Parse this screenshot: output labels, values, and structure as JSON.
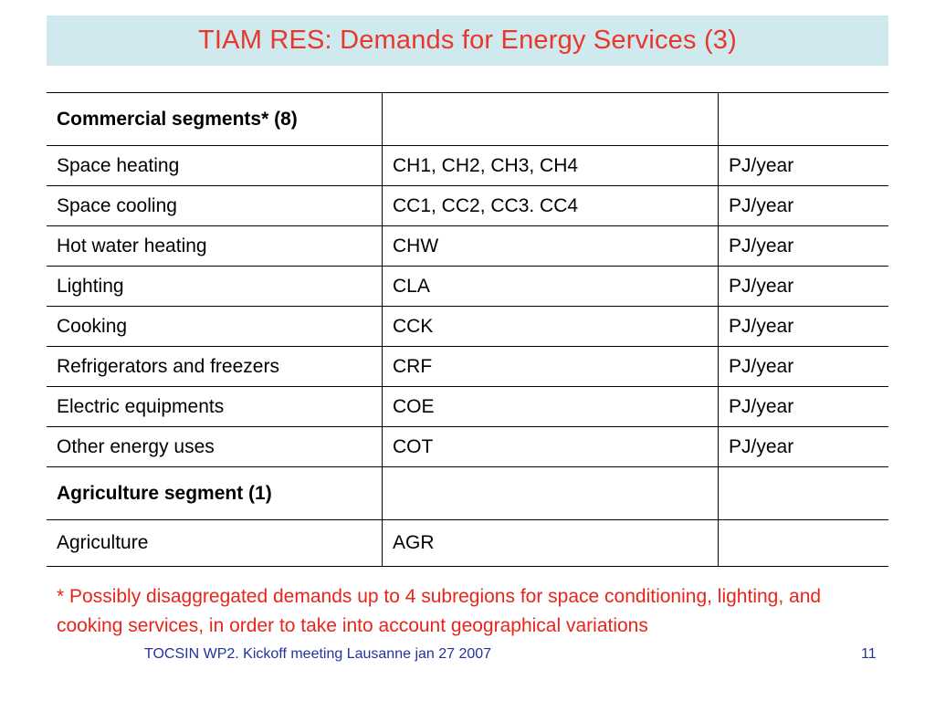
{
  "title": "TIAM RES: Demands for Energy Services (3)",
  "table": {
    "rows": [
      {
        "kind": "header",
        "c1": "Commercial segments* (8)",
        "c2": "",
        "c3": ""
      },
      {
        "kind": "row",
        "c1": "Space heating",
        "c2": "CH1, CH2, CH3, CH4",
        "c3": "PJ/year"
      },
      {
        "kind": "row",
        "c1": "Space cooling",
        "c2": "CC1, CC2, CC3. CC4",
        "c3": "PJ/year"
      },
      {
        "kind": "row",
        "c1": "Hot water heating",
        "c2": "CHW",
        "c3": "PJ/year"
      },
      {
        "kind": "row",
        "c1": "Lighting",
        "c2": "CLA",
        "c3": "PJ/year"
      },
      {
        "kind": "row",
        "c1": "Cooking",
        "c2": "CCK",
        "c3": "PJ/year"
      },
      {
        "kind": "row",
        "c1": "Refrigerators and freezers",
        "c2": "CRF",
        "c3": "PJ/year"
      },
      {
        "kind": "row",
        "c1": "Electric equipments",
        "c2": "COE",
        "c3": "PJ/year"
      },
      {
        "kind": "row",
        "c1": "Other energy uses",
        "c2": "COT",
        "c3": "PJ/year"
      },
      {
        "kind": "header",
        "c1": "Agriculture segment (1)",
        "c2": "",
        "c3": ""
      },
      {
        "kind": "row-last",
        "c1": "Agriculture",
        "c2": "AGR",
        "c3": ""
      }
    ]
  },
  "footnote": "* Possibly disaggregated demands up to 4 subregions for space conditioning, lighting, and cooking services, in order to take into account geographical variations",
  "footer": {
    "left": "TOCSIN WP2. Kickoff meeting Lausanne jan 27 2007",
    "page": "11"
  },
  "colors": {
    "title_text": "#e8382b",
    "title_band": "#cfe9ee",
    "footnote_text": "#e8251b",
    "footer_text": "#2233a0"
  }
}
